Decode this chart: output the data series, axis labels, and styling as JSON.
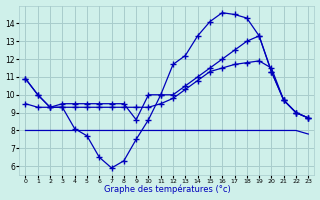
{
  "xlabel": "Graphe des températures (°c)",
  "bg_color": "#cff0ea",
  "grid_color": "#a8cccc",
  "line_color": "#0000bb",
  "hours": [
    0,
    1,
    2,
    3,
    4,
    5,
    6,
    7,
    8,
    9,
    10,
    11,
    12,
    13,
    14,
    15,
    16,
    17,
    18,
    19,
    20,
    21,
    22,
    23
  ],
  "line_max": [
    10.9,
    10.0,
    9.3,
    9.3,
    8.1,
    7.7,
    6.5,
    5.9,
    6.3,
    7.5,
    8.6,
    10.0,
    11.7,
    12.2,
    13.3,
    14.1,
    14.6,
    14.5,
    14.3,
    13.3,
    11.3,
    9.7,
    9.0,
    8.7
  ],
  "line_mid": [
    10.9,
    10.0,
    9.3,
    9.5,
    9.5,
    9.5,
    9.5,
    9.5,
    9.5,
    8.6,
    10.0,
    10.0,
    10.0,
    10.5,
    11.0,
    11.5,
    12.0,
    12.5,
    13.0,
    13.3,
    11.3,
    9.7,
    9.0,
    8.7
  ],
  "line_flat": [
    8.0,
    8.0,
    8.0,
    8.0,
    8.0,
    8.0,
    8.0,
    8.0,
    8.0,
    8.0,
    8.0,
    8.0,
    8.0,
    8.0,
    8.0,
    8.0,
    8.0,
    8.0,
    8.0,
    8.0,
    8.0,
    8.0,
    8.0,
    7.8
  ],
  "line_slope": [
    9.5,
    9.3,
    9.3,
    9.3,
    9.3,
    9.3,
    9.3,
    9.3,
    9.3,
    9.3,
    9.3,
    9.5,
    9.8,
    10.3,
    10.8,
    11.3,
    11.5,
    11.7,
    11.8,
    11.9,
    11.5,
    9.7,
    9.0,
    8.7
  ],
  "ylim": [
    5.5,
    15.0
  ],
  "yticks": [
    6,
    7,
    8,
    9,
    10,
    11,
    12,
    13,
    14
  ],
  "xticks": [
    0,
    1,
    2,
    3,
    4,
    5,
    6,
    7,
    8,
    9,
    10,
    11,
    12,
    13,
    14,
    15,
    16,
    17,
    18,
    19,
    20,
    21,
    22,
    23
  ]
}
